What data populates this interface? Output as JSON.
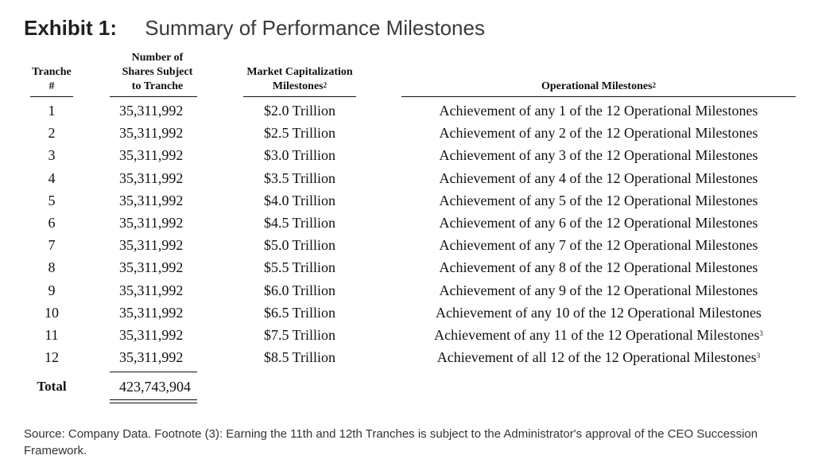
{
  "title": {
    "label": "Exhibit 1:",
    "subtitle": "Summary of Performance Milestones"
  },
  "headers": {
    "tranche": [
      "Tranche",
      "#"
    ],
    "shares": [
      "Number of",
      "Shares Subject",
      "to Tranche"
    ],
    "mcap": [
      "Market Capitalization",
      "Milestones"
    ],
    "mcap_sup": "2",
    "ops": "Operational Milestones",
    "ops_sup": "2"
  },
  "rows": [
    {
      "tranche": "1",
      "shares": "35,311,992",
      "mcap": "$2.0 Trillion",
      "ops": "Achievement of any 1 of the 12 Operational Milestones",
      "sup": ""
    },
    {
      "tranche": "2",
      "shares": "35,311,992",
      "mcap": "$2.5 Trillion",
      "ops": "Achievement of any 2 of the 12 Operational Milestones",
      "sup": ""
    },
    {
      "tranche": "3",
      "shares": "35,311,992",
      "mcap": "$3.0 Trillion",
      "ops": "Achievement of any 3 of the 12 Operational Milestones",
      "sup": ""
    },
    {
      "tranche": "4",
      "shares": "35,311,992",
      "mcap": "$3.5 Trillion",
      "ops": "Achievement of any 4 of the 12 Operational Milestones",
      "sup": ""
    },
    {
      "tranche": "5",
      "shares": "35,311,992",
      "mcap": "$4.0 Trillion",
      "ops": "Achievement of any 5 of the 12 Operational Milestones",
      "sup": ""
    },
    {
      "tranche": "6",
      "shares": "35,311,992",
      "mcap": "$4.5 Trillion",
      "ops": "Achievement of any 6 of the 12 Operational Milestones",
      "sup": ""
    },
    {
      "tranche": "7",
      "shares": "35,311,992",
      "mcap": "$5.0 Trillion",
      "ops": "Achievement of any 7 of the 12 Operational Milestones",
      "sup": ""
    },
    {
      "tranche": "8",
      "shares": "35,311,992",
      "mcap": "$5.5 Trillion",
      "ops": "Achievement of any 8 of the 12 Operational Milestones",
      "sup": ""
    },
    {
      "tranche": "9",
      "shares": "35,311,992",
      "mcap": "$6.0 Trillion",
      "ops": "Achievement of any 9 of the 12 Operational Milestones",
      "sup": ""
    },
    {
      "tranche": "10",
      "shares": "35,311,992",
      "mcap": "$6.5 Trillion",
      "ops": "Achievement of any 10 of the 12 Operational Milestones",
      "sup": ""
    },
    {
      "tranche": "11",
      "shares": "35,311,992",
      "mcap": "$7.5 Trillion",
      "ops": "Achievement of any 11 of the 12 Operational Milestones",
      "sup": "3"
    },
    {
      "tranche": "12",
      "shares": "35,311,992",
      "mcap": "$8.5 Trillion",
      "ops": "Achievement of all 12 of the 12 Operational Milestones",
      "sup": "3"
    }
  ],
  "total": {
    "label": "Total",
    "value": "423,743,904"
  },
  "source": "Source: Company Data. Footnote (3): Earning the 11th and 12th Tranches is subject to the Administrator's approval of the CEO Succession Framework."
}
